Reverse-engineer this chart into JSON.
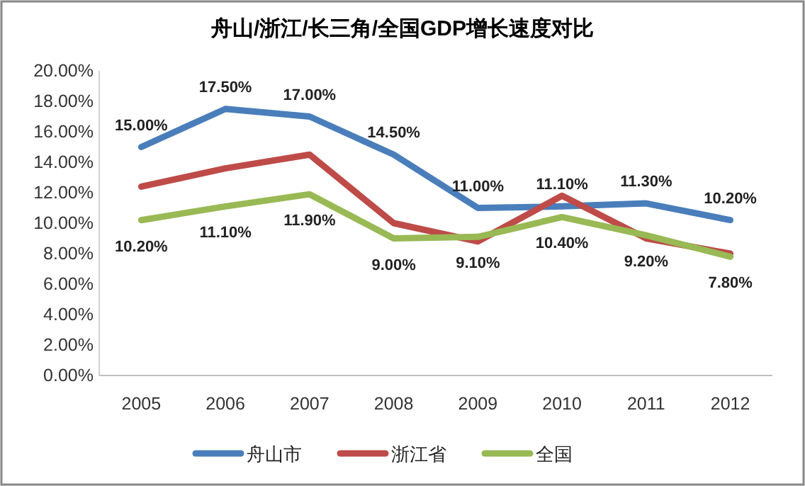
{
  "chart_data": {
    "type": "line",
    "title": "舟山/浙江/长三角/全国GDP增长速度对比",
    "categories": [
      "2005",
      "2006",
      "2007",
      "2008",
      "2009",
      "2010",
      "2011",
      "2012"
    ],
    "series": [
      {
        "name": "舟山市",
        "color": "#4a7ebb",
        "values": [
          15.0,
          17.5,
          17.0,
          14.5,
          11.0,
          11.1,
          11.3,
          10.2
        ],
        "value_labels": [
          "15.00%",
          "17.50%",
          "17.00%",
          "14.50%",
          "11.00%",
          "11.10%",
          "11.30%",
          "10.20%"
        ]
      },
      {
        "name": "浙江省",
        "color": "#be4b48",
        "values": [
          12.4,
          13.6,
          14.5,
          10.0,
          8.8,
          11.8,
          9.0,
          8.0
        ]
      },
      {
        "name": "全国",
        "color": "#98b954",
        "values": [
          10.2,
          11.1,
          11.9,
          9.0,
          9.1,
          10.4,
          9.2,
          7.8
        ],
        "value_labels": [
          "10.20%",
          "11.10%",
          "11.90%",
          "9.00%",
          "9.10%",
          "10.40%",
          "9.20%",
          "7.80%"
        ]
      }
    ],
    "ylim": [
      0,
      20
    ],
    "yticks": [
      {
        "value": 0,
        "label": "0.00%"
      },
      {
        "value": 2,
        "label": "2.00%"
      },
      {
        "value": 4,
        "label": "4.00%"
      },
      {
        "value": 6,
        "label": "6.00%"
      },
      {
        "value": 8,
        "label": "8.00%"
      },
      {
        "value": 10,
        "label": "10.00%"
      },
      {
        "value": 12,
        "label": "12.00%"
      },
      {
        "value": 14,
        "label": "14.00%"
      },
      {
        "value": 16,
        "label": "16.00%"
      },
      {
        "value": 18,
        "label": "18.00%"
      },
      {
        "value": 20,
        "label": "20.00%"
      }
    ],
    "grid": false,
    "legend": "bottom",
    "marker": "none",
    "line_style": "solid"
  }
}
